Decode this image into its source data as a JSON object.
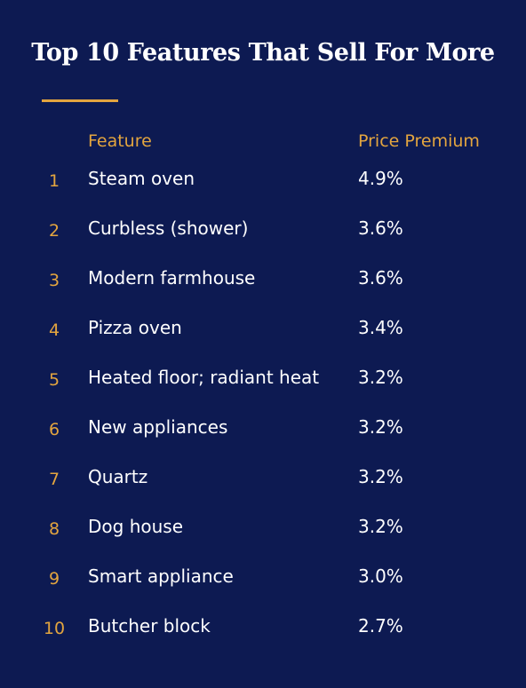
{
  "chart_data": {
    "type": "table",
    "title": "Top 10 Features That Sell For More",
    "columns": [
      "Feature",
      "Price Premium"
    ],
    "rows": [
      {
        "rank": "1",
        "feature": "Steam oven",
        "premium": "4.9%",
        "value": 4.9
      },
      {
        "rank": "2",
        "feature": "Curbless (shower)",
        "premium": "3.6%",
        "value": 3.6
      },
      {
        "rank": "3",
        "feature": "Modern farmhouse",
        "premium": "3.6%",
        "value": 3.6
      },
      {
        "rank": "4",
        "feature": "Pizza oven",
        "premium": "3.4%",
        "value": 3.4
      },
      {
        "rank": "5",
        "feature": "Heated floor; radiant heat",
        "premium": "3.2%",
        "value": 3.2
      },
      {
        "rank": "6",
        "feature": "New appliances",
        "premium": "3.2%",
        "value": 3.2
      },
      {
        "rank": "7",
        "feature": "Quartz",
        "premium": "3.2%",
        "value": 3.2
      },
      {
        "rank": "8",
        "feature": "Dog house",
        "premium": "3.2%",
        "value": 3.2
      },
      {
        "rank": "9",
        "feature": "Smart appliance",
        "premium": "3.0%",
        "value": 3.0
      },
      {
        "rank": "10",
        "feature": "Butcher block",
        "premium": "2.7%",
        "value": 2.7
      }
    ]
  },
  "colors": {
    "background": "#0d1a52",
    "accent": "#e3a53f",
    "text": "#ffffff"
  }
}
